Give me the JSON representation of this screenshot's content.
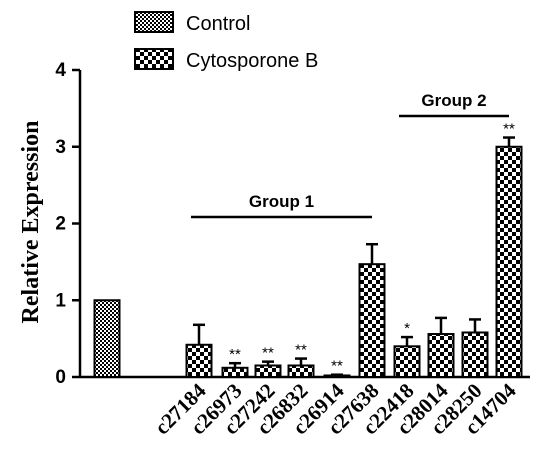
{
  "chart_data": {
    "type": "bar",
    "title": "",
    "xlabel": "",
    "ylabel": "Relative Expression",
    "ylim": [
      0,
      4
    ],
    "yticks": [
      "0",
      "1",
      "2",
      "3",
      "4"
    ],
    "grid": false,
    "legend_position": "top-left",
    "series": [
      {
        "name": "Control",
        "pattern": "fine-checker"
      },
      {
        "name": "Cytosporone B",
        "pattern": "coarse-checker"
      }
    ],
    "categories": [
      "",
      "c27184",
      "c26973",
      "c27242",
      "c26832",
      "c26914",
      "c27638",
      "c22418",
      "c28014",
      "c28250",
      "c14704"
    ],
    "bars": [
      {
        "label": "",
        "series": "Control",
        "value": 1.0,
        "error": 0,
        "sig": ""
      },
      {
        "label": "c27184",
        "series": "Cytosporone B",
        "value": 0.42,
        "error": 0.26,
        "sig": ""
      },
      {
        "label": "c26973",
        "series": "Cytosporone B",
        "value": 0.12,
        "error": 0.06,
        "sig": "**"
      },
      {
        "label": "c27242",
        "series": "Cytosporone B",
        "value": 0.15,
        "error": 0.05,
        "sig": "**"
      },
      {
        "label": "c26832",
        "series": "Cytosporone B",
        "value": 0.15,
        "error": 0.09,
        "sig": "**"
      },
      {
        "label": "c26914",
        "series": "Cytosporone B",
        "value": 0.02,
        "error": 0.01,
        "sig": "**"
      },
      {
        "label": "c27638",
        "series": "Cytosporone B",
        "value": 1.47,
        "error": 0.26,
        "sig": ""
      },
      {
        "label": "c22418",
        "series": "Cytosporone B",
        "value": 0.4,
        "error": 0.12,
        "sig": "*"
      },
      {
        "label": "c28014",
        "series": "Cytosporone B",
        "value": 0.56,
        "error": 0.21,
        "sig": ""
      },
      {
        "label": "c28250",
        "series": "Cytosporone B",
        "value": 0.58,
        "error": 0.17,
        "sig": ""
      },
      {
        "label": "c14704",
        "series": "Cytosporone B",
        "value": 3.0,
        "error": 0.12,
        "sig": "**"
      }
    ],
    "groups": [
      {
        "label": "Group 1",
        "from": "c27184",
        "to": "c27638"
      },
      {
        "label": "Group 2",
        "from": "c22418",
        "to": "c14704"
      }
    ]
  }
}
